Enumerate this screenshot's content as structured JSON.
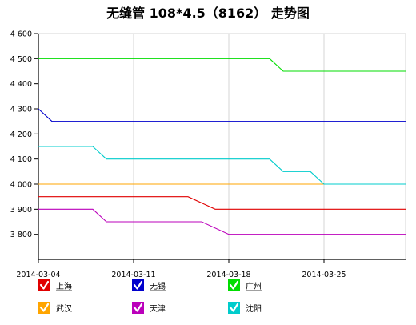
{
  "chart_data": {
    "type": "line",
    "title": "无缝管 108*4.5（8162） 走势图",
    "xlabel": "",
    "ylabel": "",
    "x_range": [
      "2014-03-04",
      "2014-03-31"
    ],
    "x_ticks": [
      "2014-03-04",
      "2014-03-11",
      "2014-03-18",
      "2014-03-25"
    ],
    "ylim": [
      3700,
      4600
    ],
    "y_ticks": [
      3800,
      3900,
      4000,
      4100,
      4200,
      4300,
      4400,
      4500,
      4600
    ],
    "y_tick_labels": [
      "3 800",
      "3 900",
      "4 000",
      "4 100",
      "4 200",
      "4 300",
      "4 400",
      "4 500",
      "4 600"
    ],
    "grid": "vertical",
    "legend_position": "bottom",
    "series": [
      {
        "name": "上海",
        "color": "#e00000",
        "underline": true,
        "points": [
          [
            "2014-03-04",
            3950
          ],
          [
            "2014-03-15",
            3950
          ],
          [
            "2014-03-17",
            3900
          ],
          [
            "2014-03-31",
            3900
          ]
        ]
      },
      {
        "name": "无锡",
        "color": "#0000cc",
        "underline": true,
        "points": [
          [
            "2014-03-04",
            4300
          ],
          [
            "2014-03-05",
            4250
          ],
          [
            "2014-03-31",
            4250
          ]
        ]
      },
      {
        "name": "广州",
        "color": "#00dd00",
        "underline": true,
        "points": [
          [
            "2014-03-04",
            4500
          ],
          [
            "2014-03-21",
            4500
          ],
          [
            "2014-03-22",
            4450
          ],
          [
            "2014-03-31",
            4450
          ]
        ]
      },
      {
        "name": "武汉",
        "color": "#ffa500",
        "underline": false,
        "points": [
          [
            "2014-03-04",
            4000
          ],
          [
            "2014-03-31",
            4000
          ]
        ]
      },
      {
        "name": "天津",
        "color": "#bb00bb",
        "underline": false,
        "points": [
          [
            "2014-03-04",
            3900
          ],
          [
            "2014-03-08",
            3900
          ],
          [
            "2014-03-09",
            3850
          ],
          [
            "2014-03-16",
            3850
          ],
          [
            "2014-03-18",
            3800
          ],
          [
            "2014-03-31",
            3800
          ]
        ]
      },
      {
        "name": "沈阳",
        "color": "#00cccc",
        "underline": false,
        "points": [
          [
            "2014-03-04",
            4150
          ],
          [
            "2014-03-08",
            4150
          ],
          [
            "2014-03-09",
            4100
          ],
          [
            "2014-03-21",
            4100
          ],
          [
            "2014-03-22",
            4050
          ],
          [
            "2014-03-24",
            4050
          ],
          [
            "2014-03-25",
            4000
          ],
          [
            "2014-03-31",
            4000
          ]
        ]
      }
    ]
  }
}
